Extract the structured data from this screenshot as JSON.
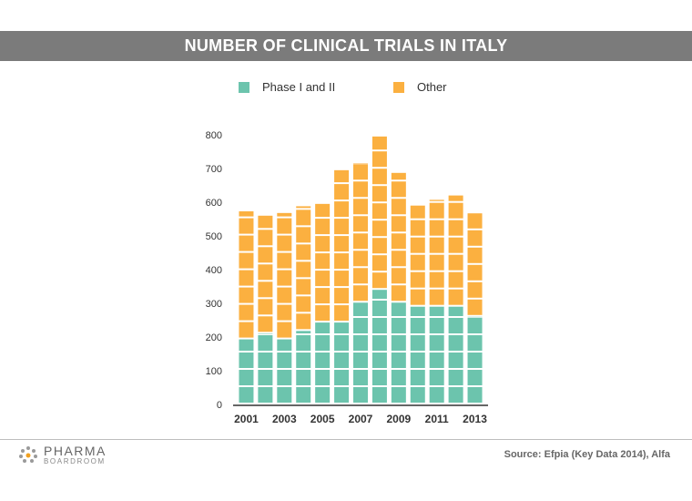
{
  "header": {
    "title": "NUMBER OF CLINICAL TRIALS IN ITALY"
  },
  "colors": {
    "phase": "#6cc4ad",
    "other": "#fbb040",
    "title_bg": "#7b7b7b"
  },
  "chart_data": {
    "type": "bar",
    "stacked": true,
    "x": [
      2001,
      2002,
      2003,
      2004,
      2005,
      2006,
      2007,
      2008,
      2009,
      2010,
      2011,
      2012,
      2013
    ],
    "tick_labels": [
      "2001",
      "2003",
      "2005",
      "2007",
      "2009",
      "2011",
      "2013"
    ],
    "series": [
      {
        "name": "Phase I and II",
        "color": "#6cc4ad",
        "values": [
          193,
          210,
          193,
          218,
          243,
          243,
          302,
          340,
          302,
          290,
          290,
          290,
          260
        ]
      },
      {
        "name": "Other",
        "color": "#fbb040",
        "values": [
          380,
          350,
          375,
          370,
          352,
          452,
          413,
          455,
          385,
          300,
          317,
          330,
          307
        ]
      }
    ],
    "yticks": [
      0,
      100,
      200,
      300,
      400,
      500,
      600,
      700,
      800
    ],
    "ylim": [
      0,
      800
    ],
    "legend_position": "top",
    "grid": false
  },
  "logo": {
    "main": "PHARMA",
    "sub": "BOARDROOM"
  },
  "source": "Source: Efpia (Key Data 2014), Alfa"
}
